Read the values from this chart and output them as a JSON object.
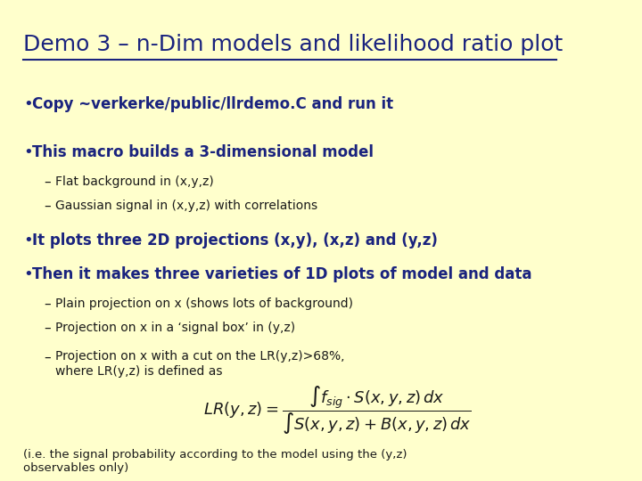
{
  "bg_color": "#ffffcc",
  "title": "Demo 3 – n-Dim models and likelihood ratio plot",
  "title_color": "#1a237e",
  "title_fontsize": 18,
  "title_underline": true,
  "bullet_color": "#1a237e",
  "text_color": "#1a1a1a",
  "bullet1": "Copy ~verkerke/public/llrdemo.C and run it",
  "bullet2": "This macro builds a 3-dimensional model",
  "sub2a": "Flat background in (x,y,z)",
  "sub2b": "Gaussian signal in (x,y,z) with correlations",
  "bullet3": "It plots three 2D projections (x,y), (x,z) and (y,z)",
  "bullet4": "Then it makes three varieties of 1D plots of model and data",
  "sub4a": "Plain projection on x (shows lots of background)",
  "sub4b": "Projection on x in a ‘signal box’ in (y,z)",
  "sub4c": "Projection on x with a cut on the LR(y,z)>68%,\nwhere LR(y,z) is defined as",
  "footnote": "(i.e. the signal probability according to the model using the (y,z)\nobservables only)"
}
